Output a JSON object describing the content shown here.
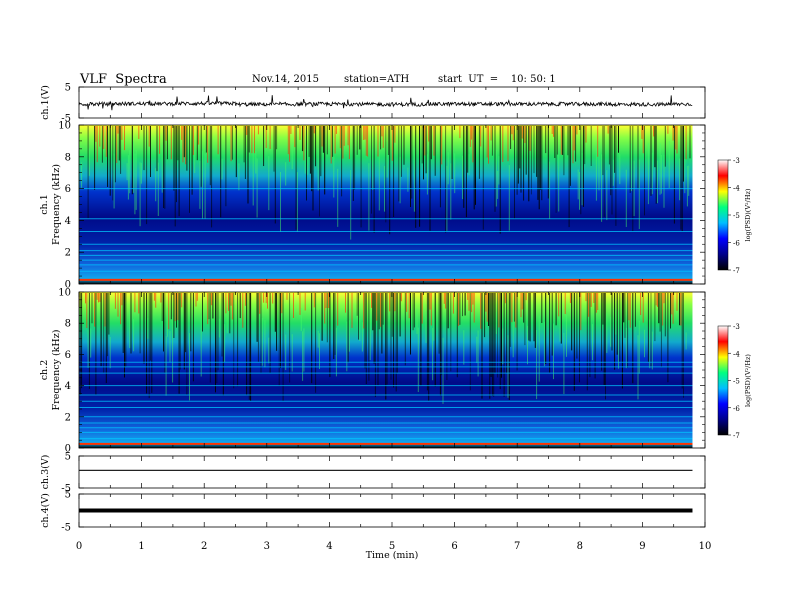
{
  "header": {
    "title": "VLF  Spectra",
    "date": "Nov.14, 2015",
    "station": "station=ATH",
    "start": "start  UT  =    10: 50: 1"
  },
  "colors": {
    "spectrogram_colormap": [
      "#000000",
      "#00008b",
      "#0000ff",
      "#00bfff",
      "#00ff7f",
      "#ffff00",
      "#ff0000",
      "#ffffff"
    ],
    "trace": "#000000",
    "gridline": "#00c8ff"
  },
  "chart_data": [
    {
      "type": "line",
      "panel": "ch1",
      "ylabel": "ch.1(V)",
      "ylim": [
        -5,
        5
      ],
      "yticks": [
        "5",
        "-5"
      ],
      "x": [
        0,
        1,
        2,
        3,
        4,
        5,
        6,
        7,
        8,
        9,
        9.8
      ],
      "values": [
        -0.5,
        -0.4,
        -0.3,
        -0.6,
        -0.5,
        -0.6,
        -0.5,
        -0.5,
        -0.5,
        -0.6,
        -0.5
      ],
      "xlim": [
        0,
        10
      ]
    },
    {
      "type": "heatmap",
      "panel": "ch2spec",
      "ylabel": "ch.1\nFrequency (kHz)",
      "ylim": [
        0,
        10
      ],
      "yticks": [
        "0",
        "2",
        "4",
        "6",
        "8",
        "10"
      ],
      "xlim": [
        0,
        10
      ],
      "data_end_min": 9.8,
      "colorbar": {
        "label": "log(PSD)(V²/Hz)",
        "ticks": [
          "-3",
          "-4",
          "-5",
          "-6",
          "-7"
        ],
        "range": [
          -7,
          -3
        ]
      }
    },
    {
      "type": "heatmap",
      "panel": "ch2spec2",
      "ylabel": "ch.2\nFrequency (kHz)",
      "ylim": [
        0,
        10
      ],
      "yticks": [
        "0",
        "2",
        "4",
        "6",
        "8",
        "10"
      ],
      "xlim": [
        0,
        10
      ],
      "data_end_min": 9.8,
      "colorbar": {
        "label": "log(PSD)(V²/Hz)",
        "ticks": [
          "-3",
          "-4",
          "-5",
          "-6",
          "-7"
        ],
        "range": [
          -7,
          -3
        ]
      }
    },
    {
      "type": "line",
      "panel": "ch3",
      "ylabel": "ch.3(V)",
      "ylim": [
        -5,
        5
      ],
      "yticks": [
        "5",
        "-5"
      ],
      "x": [
        0,
        9.8
      ],
      "values": [
        0.5,
        0.5
      ],
      "xlim": [
        0,
        10
      ]
    },
    {
      "type": "line",
      "panel": "ch4",
      "ylabel": "ch.4(V)",
      "ylim": [
        -5,
        5
      ],
      "yticks": [
        "5",
        "-5"
      ],
      "x": [
        0,
        9.8
      ],
      "values": [
        0,
        0
      ],
      "xlim": [
        0,
        10
      ],
      "xlabel": "Time  (min)",
      "xticks": [
        "0",
        "1",
        "2",
        "3",
        "4",
        "5",
        "6",
        "7",
        "8",
        "9",
        "10"
      ]
    }
  ]
}
